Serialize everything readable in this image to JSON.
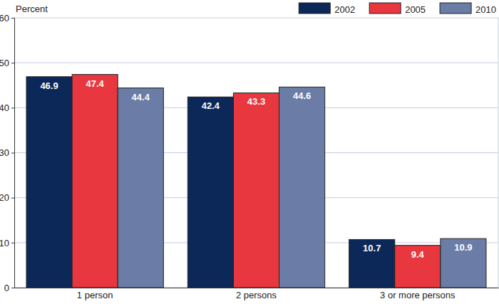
{
  "chart_data": {
    "type": "bar",
    "y_label": "Percent",
    "categories": [
      "1 person",
      "2 persons",
      "3 or more persons"
    ],
    "series": [
      {
        "name": "2002",
        "color": "#0b2858",
        "values": [
          46.9,
          42.4,
          10.7
        ]
      },
      {
        "name": "2005",
        "color": "#e8373f",
        "values": [
          47.4,
          43.3,
          9.4
        ]
      },
      {
        "name": "2010",
        "color": "#6b7ca6",
        "values": [
          44.4,
          44.6,
          10.9
        ]
      }
    ],
    "ylim": [
      0,
      60
    ],
    "yticks": [
      0,
      10,
      20,
      30,
      40,
      50,
      60
    ],
    "grid": true,
    "legend": "top-right",
    "data_labels": true
  }
}
